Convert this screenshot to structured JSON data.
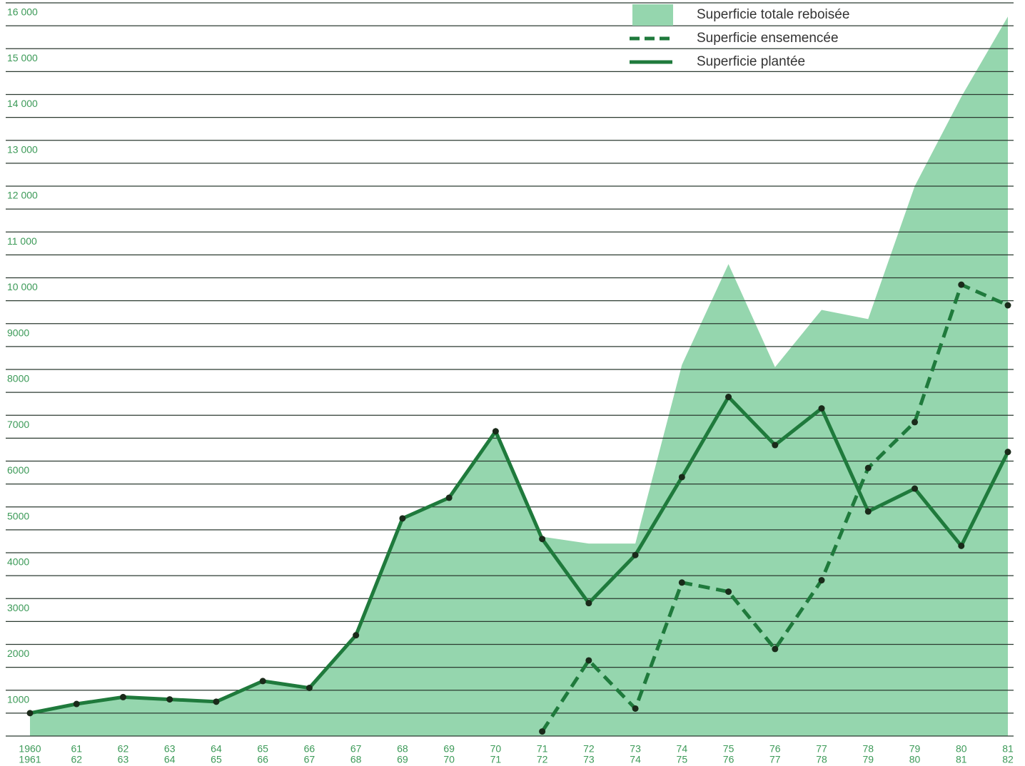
{
  "chart_data": {
    "type": "area-line",
    "categories": [
      [
        "1960",
        "1961"
      ],
      [
        "61",
        "62"
      ],
      [
        "62",
        "63"
      ],
      [
        "63",
        "64"
      ],
      [
        "64",
        "65"
      ],
      [
        "65",
        "66"
      ],
      [
        "66",
        "67"
      ],
      [
        "67",
        "68"
      ],
      [
        "68",
        "69"
      ],
      [
        "69",
        "70"
      ],
      [
        "70",
        "71"
      ],
      [
        "71",
        "72"
      ],
      [
        "72",
        "73"
      ],
      [
        "73",
        "74"
      ],
      [
        "74",
        "75"
      ],
      [
        "75",
        "76"
      ],
      [
        "76",
        "77"
      ],
      [
        "77",
        "78"
      ],
      [
        "78",
        "79"
      ],
      [
        "79",
        "80"
      ],
      [
        "80",
        "81"
      ],
      [
        "81",
        "82"
      ]
    ],
    "series": [
      {
        "name": "Superficie totale reboisée",
        "kind": "area",
        "color": "#95d6ae",
        "values": [
          500,
          700,
          850,
          800,
          750,
          1200,
          1050,
          2200,
          4750,
          5200,
          6650,
          4350,
          4200,
          4200,
          8100,
          10300,
          8050,
          9300,
          9100,
          12000,
          13950,
          15700
        ]
      },
      {
        "name": "Superficie ensemencée",
        "kind": "dashed",
        "color": "#1f7a3c",
        "values": [
          null,
          null,
          null,
          null,
          null,
          null,
          null,
          null,
          null,
          null,
          null,
          100,
          1650,
          600,
          3350,
          3150,
          1900,
          3400,
          5850,
          6850,
          9850,
          9400
        ]
      },
      {
        "name": "Superficie plantée",
        "kind": "solid",
        "color": "#1f7a3c",
        "values": [
          500,
          700,
          850,
          800,
          750,
          1200,
          1050,
          2200,
          4750,
          5200,
          6650,
          4300,
          2900,
          3950,
          5650,
          7400,
          6350,
          7150,
          4900,
          5400,
          4150,
          6200
        ]
      }
    ],
    "ylim": [
      0,
      16000
    ],
    "yticks": [
      1000,
      2000,
      3000,
      4000,
      5000,
      6000,
      7000,
      8000,
      9000,
      {
        "value": 10000,
        "label": "10 000"
      },
      {
        "value": 11000,
        "label": "11 000"
      },
      {
        "value": 12000,
        "label": "12 000"
      },
      {
        "value": 13000,
        "label": "13 000"
      },
      {
        "value": 14000,
        "label": "14 000"
      },
      {
        "value": 15000,
        "label": "15 000"
      },
      {
        "value": 16000,
        "label": "16 000"
      }
    ],
    "minor_yticks": [
      0,
      500,
      1500,
      2500,
      3500,
      4500,
      5500,
      6500,
      7500,
      8500,
      9500,
      10500,
      11500,
      12500,
      13500,
      14500,
      15500
    ],
    "grid": true,
    "marker_color": "#1a2a1a",
    "legend": "top-right"
  }
}
